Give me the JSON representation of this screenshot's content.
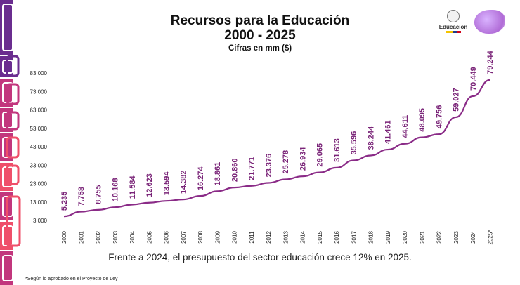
{
  "header": {
    "title_line1": "Recursos para la Educación",
    "title_line2": "2000 - 2025",
    "subtitle": "Cifras en mm ($)",
    "logo_text": "Educación"
  },
  "note": "Frente a 2024, el presupuesto del sector educación crece 12% en 2025.",
  "footnote": "*Según lo aprobado en el Proyecto de Ley",
  "colors": {
    "series": "#8a2b87",
    "label": "#7a2478",
    "decor": [
      "#6a2d8f",
      "#c2367d",
      "#ef4f6a"
    ]
  },
  "chart_data": {
    "type": "line",
    "title": "Recursos para la Educación 2000 - 2025",
    "subtitle": "Cifras en mm ($)",
    "categories": [
      "2000",
      "2001",
      "2002",
      "2003",
      "2004",
      "2005",
      "2006",
      "2007",
      "2008",
      "2009",
      "2010",
      "2011",
      "2012",
      "2013",
      "2014",
      "2015",
      "2016",
      "2017",
      "2018",
      "2019",
      "2020",
      "2021",
      "2022",
      "2023",
      "2024",
      "2025*"
    ],
    "values": [
      5.235,
      7.758,
      8.755,
      10.168,
      11.584,
      12.623,
      13.594,
      14.382,
      16.274,
      18.861,
      20.86,
      21.771,
      23.376,
      25.278,
      26.934,
      29.065,
      31.613,
      35.596,
      38.244,
      41.461,
      44.611,
      48.095,
      49.756,
      59.027,
      70.449,
      79.244
    ],
    "value_labels": [
      "5.235",
      "7.758",
      "8.755",
      "10.168",
      "11.584",
      "12.623",
      "13.594",
      "14.382",
      "16.274",
      "18.861",
      "20.860",
      "21.771",
      "23.376",
      "25.278",
      "26.934",
      "29.065",
      "31.613",
      "35.596",
      "38.244",
      "41.461",
      "44.611",
      "48.095",
      "49.756",
      "59.027",
      "70.449",
      "79.244"
    ],
    "y_ticks": [
      3,
      13,
      23,
      33,
      43,
      53,
      63,
      73,
      83
    ],
    "y_tick_labels": [
      "3.000",
      "13.000",
      "23.000",
      "33.000",
      "43.000",
      "53.000",
      "63.000",
      "73.000",
      "83.000"
    ],
    "ylim": [
      3,
      83
    ],
    "grid": false,
    "legend": "none"
  }
}
